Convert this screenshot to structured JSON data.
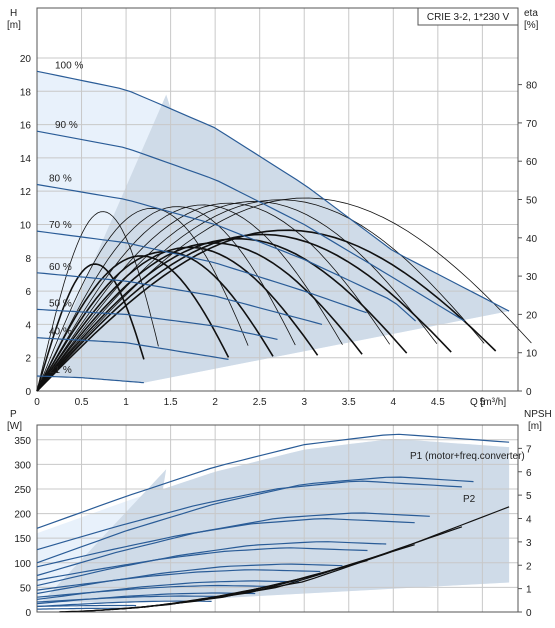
{
  "title_box": "CRIE 3-2, 1*230 V",
  "chart_data": [
    {
      "type": "line",
      "name": "pump-performance",
      "ylabel_left": "H\n[m]",
      "ylabel_right": "eta\n[%]",
      "xlabel": "Q [m³/h]",
      "xlim": [
        0,
        5.4
      ],
      "ylim_left": [
        0,
        23
      ],
      "ylim_right": [
        0,
        100
      ],
      "x_ticks": [
        "0",
        "0.5",
        "1",
        "1.5",
        "2",
        "2.5",
        "3",
        "3.5",
        "4",
        "4.5",
        "5"
      ],
      "y_ticks_left": [
        "0",
        "2",
        "4",
        "6",
        "8",
        "10",
        "12",
        "14",
        "16",
        "18",
        "20"
      ],
      "y_ticks_right": [
        "0",
        "10",
        "20",
        "30",
        "40",
        "50",
        "60",
        "70",
        "80"
      ],
      "speed_labels": [
        "100 %",
        "90 %",
        "80 %",
        "70 %",
        "60 %",
        "50 %",
        "40 %",
        "21 %"
      ],
      "speed_fractions": [
        1.0,
        0.9,
        0.8,
        0.7,
        0.6,
        0.5,
        0.4,
        0.21
      ],
      "head_curves": [
        {
          "name": "100 %",
          "q": [
            0,
            1,
            2,
            3,
            4,
            5.3
          ],
          "h": [
            19.2,
            18.1,
            15.8,
            12.4,
            8.4,
            4.8
          ]
        },
        {
          "name": "90 %",
          "q": [
            0,
            1,
            2,
            3,
            4,
            4.8
          ],
          "h": [
            15.6,
            14.6,
            12.7,
            10.0,
            6.8,
            4.2
          ]
        },
        {
          "name": "80 %",
          "q": [
            0,
            1,
            2,
            3,
            4,
            4.25
          ],
          "h": [
            12.4,
            11.5,
            10.0,
            7.9,
            5.4,
            4.2
          ]
        },
        {
          "name": "70 %",
          "q": [
            0,
            1,
            2,
            3,
            3.7
          ],
          "h": [
            9.6,
            8.9,
            7.7,
            6.0,
            4.7
          ]
        },
        {
          "name": "60 %",
          "q": [
            0,
            1,
            2,
            3.2
          ],
          "h": [
            7.1,
            6.6,
            5.7,
            4.0
          ]
        },
        {
          "name": "50 %",
          "q": [
            0,
            1,
            2,
            2.7
          ],
          "h": [
            4.9,
            4.6,
            3.9,
            3.1
          ]
        },
        {
          "name": "40 %",
          "q": [
            0,
            1,
            2.15
          ],
          "h": [
            3.2,
            2.9,
            1.9
          ]
        },
        {
          "name": "21 %",
          "q": [
            0,
            0.5,
            1.2
          ],
          "h": [
            0.9,
            0.8,
            0.5
          ]
        }
      ]
    },
    {
      "type": "line",
      "name": "power-npsh",
      "ylabel_left": "P\n[W]",
      "ylabel_right": "NPSH\n[m]",
      "xlim": [
        0,
        5.4
      ],
      "ylim_left": [
        0,
        380
      ],
      "ylim_right": [
        0,
        8
      ],
      "y_ticks_left": [
        "0",
        "50",
        "100",
        "150",
        "200",
        "250",
        "300",
        "350"
      ],
      "y_ticks_right": [
        "0",
        "1",
        "2",
        "3",
        "4",
        "5",
        "6",
        "7"
      ],
      "series_labels": [
        "P1 (motor+freq.converter)",
        "P2"
      ],
      "p1_curve": {
        "q": [
          0,
          1,
          2,
          3,
          4,
          5.3
        ],
        "p": [
          160,
          225,
          285,
          330,
          352,
          335
        ]
      },
      "p2_curve": {
        "q": [
          0,
          1,
          2,
          3,
          4,
          4.9
        ],
        "p": [
          95,
          160,
          215,
          255,
          270,
          260
        ]
      },
      "npsh_curve": {
        "q": [
          1.2,
          2,
          3,
          4,
          5.3
        ],
        "npsh": [
          0.2,
          0.6,
          1.3,
          2.6,
          4.5
        ]
      }
    }
  ]
}
